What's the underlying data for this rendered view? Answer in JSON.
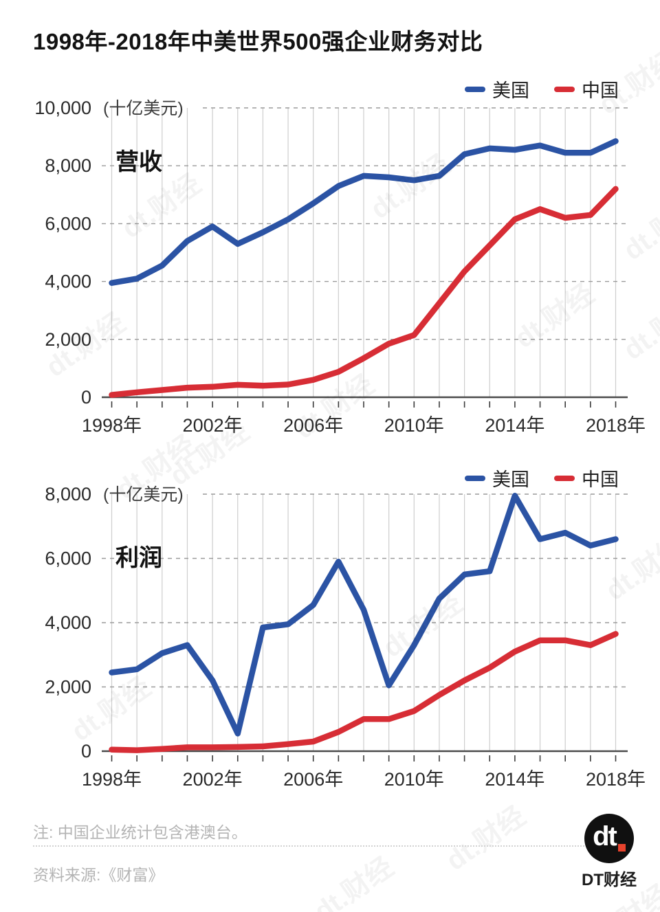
{
  "page": {
    "title": "1998年-2018年中美世界500强企业财务对比",
    "watermark": "dt.财经",
    "footer": {
      "note": "注: 中国企业统计包含港澳台。",
      "source": "资料来源:《财富》",
      "logo_text": "dt",
      "logo_dot_color": "#e8432d",
      "logo_caption": "DT财经"
    }
  },
  "chart_data": [
    {
      "type": "line",
      "title": "营收",
      "unit_label": "(十亿美元)",
      "x": [
        1998,
        1999,
        2000,
        2001,
        2002,
        2003,
        2004,
        2005,
        2006,
        2007,
        2008,
        2009,
        2010,
        2011,
        2012,
        2013,
        2014,
        2015,
        2016,
        2017,
        2018
      ],
      "x_tick_labels": [
        "1998年",
        "2002年",
        "2006年",
        "2010年",
        "2014年",
        "2018年"
      ],
      "x_tick_indices": [
        0,
        4,
        8,
        12,
        16,
        20
      ],
      "ylim": [
        0,
        10000
      ],
      "yticks": [
        0,
        2000,
        4000,
        6000,
        8000,
        10000
      ],
      "grid": "on",
      "legend_position": "top-right",
      "series": [
        {
          "id": "us",
          "name": "美国",
          "color": "#2b53a4",
          "values": [
            3950,
            4100,
            4550,
            5400,
            5900,
            5300,
            5700,
            6150,
            6700,
            7300,
            7650,
            7600,
            7500,
            7650,
            8400,
            8600,
            8550,
            8700,
            8450,
            8450,
            8850
          ]
        },
        {
          "id": "china",
          "name": "中国",
          "color": "#d72d35",
          "values": [
            80,
            170,
            250,
            330,
            360,
            430,
            400,
            440,
            600,
            880,
            1350,
            1850,
            2150,
            3250,
            4350,
            5250,
            6150,
            6500,
            6200,
            6300,
            7200
          ]
        }
      ]
    },
    {
      "type": "line",
      "title": "利润",
      "unit_label": "(十亿美元)",
      "x": [
        1998,
        1999,
        2000,
        2001,
        2002,
        2003,
        2004,
        2005,
        2006,
        2007,
        2008,
        2009,
        2010,
        2011,
        2012,
        2013,
        2014,
        2015,
        2016,
        2017,
        2018
      ],
      "x_tick_labels": [
        "1998年",
        "2002年",
        "2006年",
        "2010年",
        "2014年",
        "2018年"
      ],
      "x_tick_indices": [
        0,
        4,
        8,
        12,
        16,
        20
      ],
      "ylim": [
        0,
        8000
      ],
      "yticks": [
        0,
        2000,
        4000,
        6000,
        8000
      ],
      "grid": "on",
      "legend_position": "top-right",
      "series": [
        {
          "id": "us",
          "name": "美国",
          "color": "#2b53a4",
          "values": [
            2450,
            2550,
            3050,
            3300,
            2200,
            550,
            3850,
            3950,
            4550,
            5900,
            4400,
            2050,
            3300,
            4750,
            5500,
            5600,
            7950,
            6600,
            6800,
            6400,
            6600
          ]
        },
        {
          "id": "china",
          "name": "中国",
          "color": "#d72d35",
          "values": [
            50,
            30,
            70,
            120,
            120,
            130,
            150,
            220,
            300,
            600,
            1000,
            1000,
            1250,
            1750,
            2200,
            2600,
            3100,
            3450,
            3450,
            3300,
            3650
          ]
        }
      ]
    }
  ]
}
